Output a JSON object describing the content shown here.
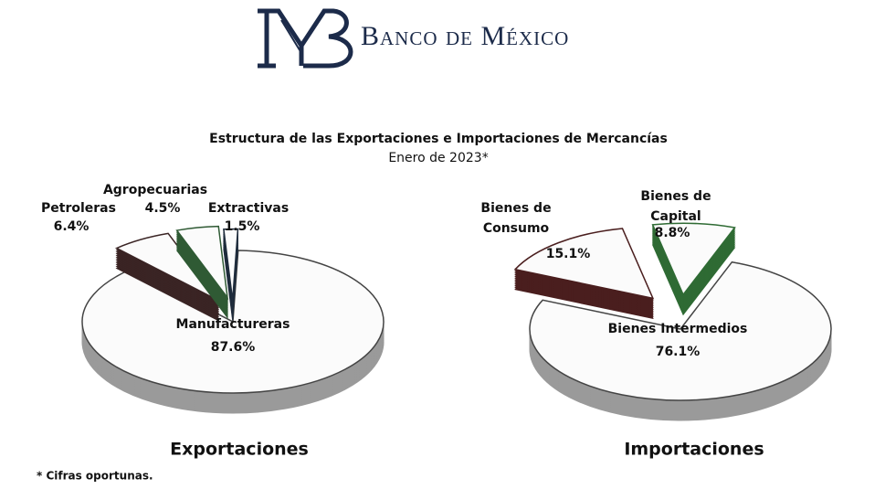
{
  "header": {
    "name": "Banco de México"
  },
  "title": "Estructura de las Exportaciones e Importaciones de Mercancías",
  "subtitle": "Enero de 2023*",
  "footnote": "* Cifras oportunas.",
  "chart_data": [
    {
      "type": "pie",
      "title": "Exportaciones",
      "categories": [
        "Manufactureras",
        "Petroleras",
        "Agropecuarias",
        "Extractivas"
      ],
      "values": [
        87.6,
        6.4,
        4.5,
        1.5
      ],
      "value_labels": [
        "87.6%",
        "6.4%",
        "4.5%",
        "1.5%"
      ],
      "colors": [
        "#9a9a9a",
        "#3a2424",
        "#2f5a34",
        "#1f2c3c"
      ]
    },
    {
      "type": "pie",
      "title": "Importaciones",
      "categories": [
        "Bienes Intermedios",
        "Bienes de Consumo",
        "Bienes de Capital"
      ],
      "values": [
        76.1,
        15.1,
        8.8
      ],
      "value_labels": [
        "76.1%",
        "15.1%",
        "8.8%"
      ],
      "colors": [
        "#9a9a9a",
        "#4a1e1e",
        "#2f6b34"
      ]
    }
  ]
}
